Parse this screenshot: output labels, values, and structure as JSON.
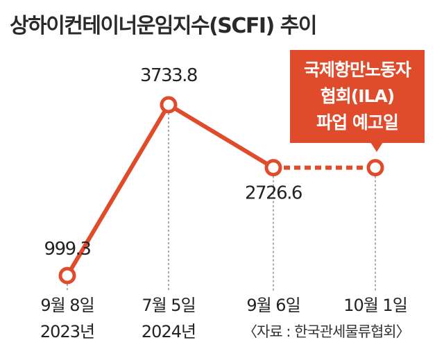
{
  "title": "상하이컨테이너운임지수(SCFI) 추이",
  "chart_data": {
    "type": "line",
    "title": "상하이컨테이너운임지수(SCFI) 추이",
    "categories": [
      {
        "date": "9월 8일",
        "year": "2023년"
      },
      {
        "date": "7월 5일",
        "year": "2024년"
      },
      {
        "date": "9월 6일",
        "year": ""
      },
      {
        "date": "10월 1일",
        "year": ""
      }
    ],
    "values": [
      999.3,
      3733.8,
      2726.6,
      2726.6
    ],
    "value_labels": [
      "999.3",
      "3733.8",
      "2726.6",
      ""
    ],
    "projected_from_index": 2,
    "ylim": [
      800,
      4100
    ],
    "grid": false,
    "line_color": "#e04b2b"
  },
  "callout": {
    "lines": [
      "국제항만노동자",
      "협회(ILA)",
      "파업 예고일"
    ]
  },
  "source": "〈자료 : 한국관세물류협회〉"
}
